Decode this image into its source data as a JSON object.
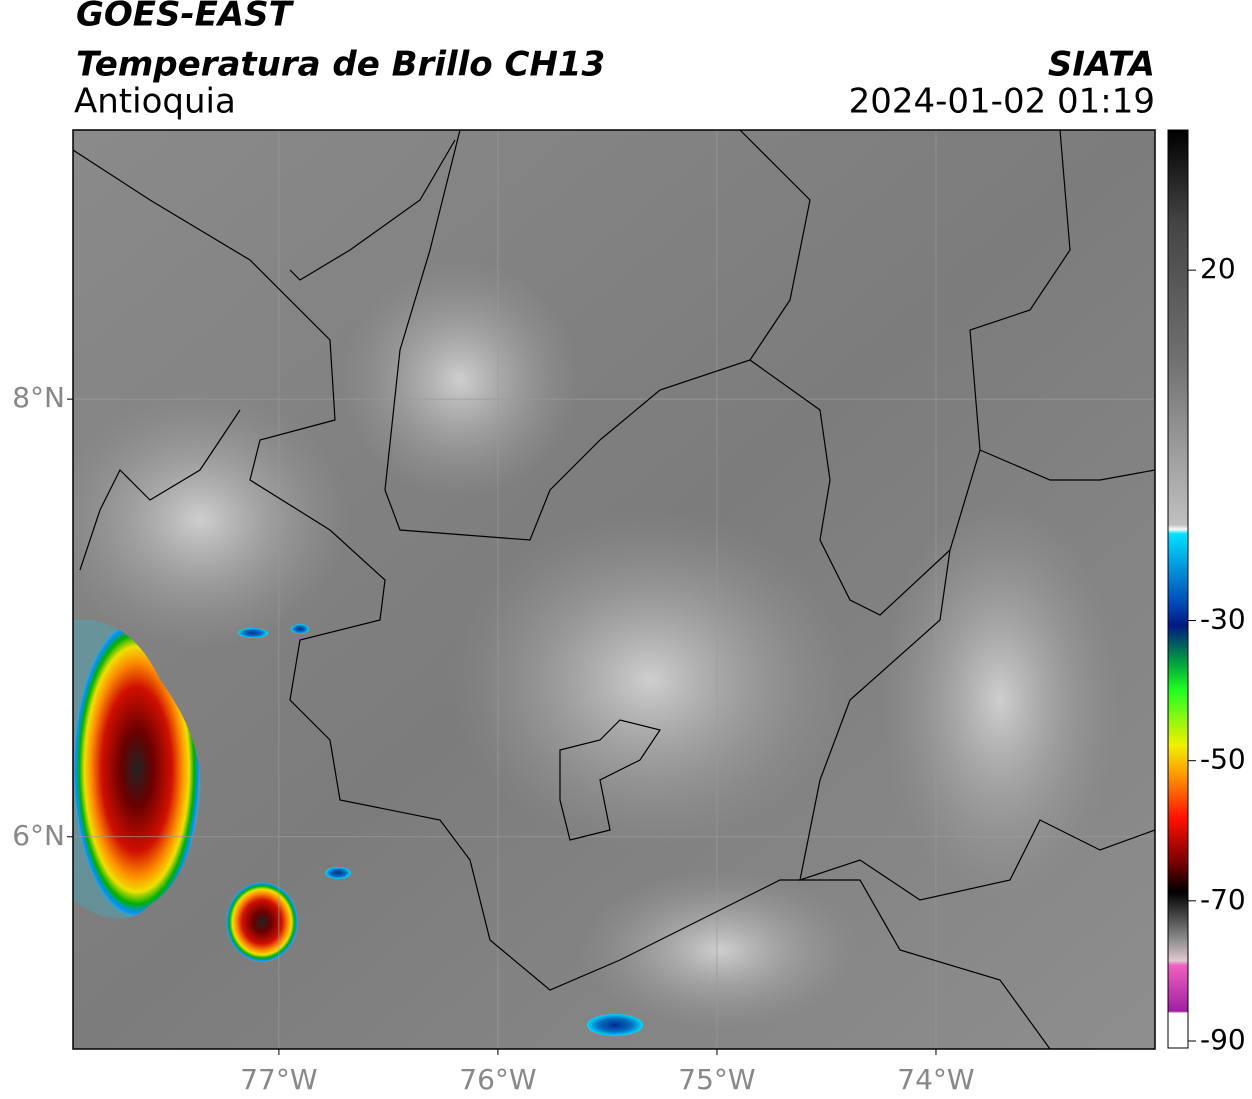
{
  "header": {
    "line1": "GOES-EAST",
    "line2": "Temperatura de Brillo CH13",
    "region": "Antioquia",
    "source": "SIATA",
    "datetime": "2024-01-02 01:19"
  },
  "map": {
    "lonlim": [
      -77.94,
      -73.0
    ],
    "latlim": [
      5.03,
      9.23
    ],
    "lonticks": [
      {
        "value": -77,
        "label": "77°W"
      },
      {
        "value": -76,
        "label": "76°W"
      },
      {
        "value": -75,
        "label": "75°W"
      },
      {
        "value": -74,
        "label": "74°W"
      }
    ],
    "latticks": [
      {
        "value": 8,
        "label": "8°N"
      },
      {
        "value": 6,
        "label": "6°N"
      }
    ],
    "grid": true
  },
  "colorbar": {
    "lim": [
      -91,
      40
    ],
    "ticks": [
      20,
      -30,
      -50,
      -70,
      -90
    ]
  }
}
